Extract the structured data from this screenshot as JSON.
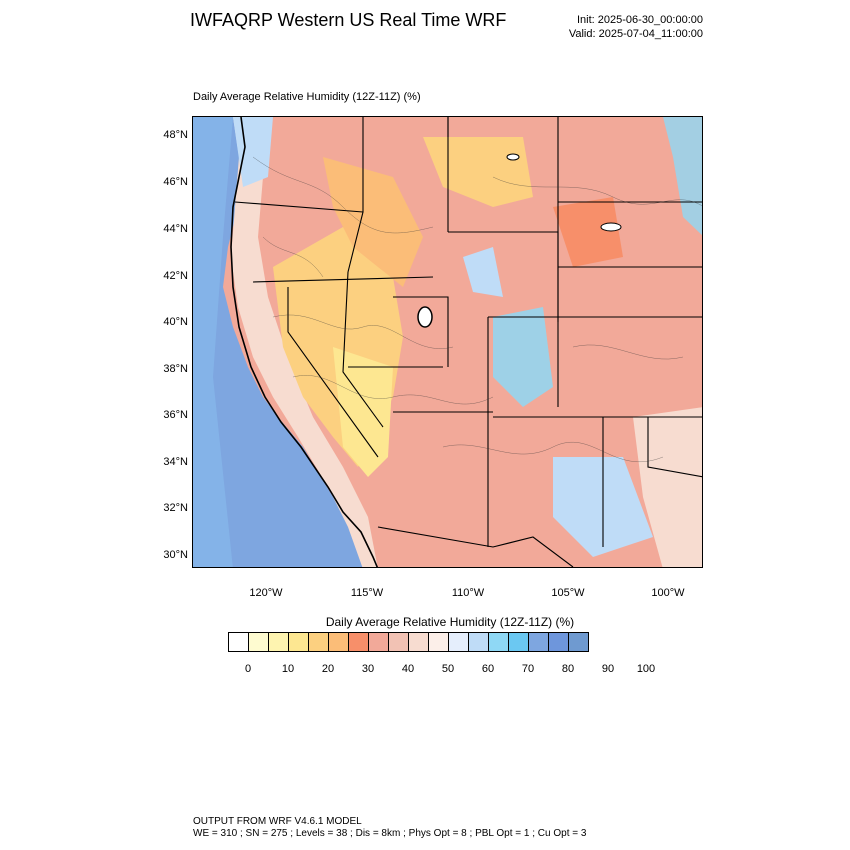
{
  "header": {
    "title": "IWFAQRP Western US Real Time WRF",
    "init": "Init: 2025-06-30_00:00:00",
    "valid": "Valid: 2025-07-04_11:00:00"
  },
  "plot": {
    "title": "Daily Average Relative Humidity (12Z-11Z)   (%)"
  },
  "map": {
    "lat_labels": [
      "48°N",
      "46°N",
      "44°N",
      "42°N",
      "40°N",
      "38°N",
      "36°N",
      "34°N",
      "32°N",
      "30°N"
    ],
    "lon_labels": [
      "120°W",
      "115°W",
      "110°W",
      "105°W",
      "100°W"
    ],
    "ocean_color": "#7ea6e0",
    "land_colors": {
      "dry": "#fcd080",
      "mid": "#f2a080",
      "moist": "#f7d8cc",
      "wet": "#8fd8f5"
    }
  },
  "colorbar": {
    "title": "Daily Average Relative Humidity (12Z-11Z)  (%)",
    "colors": [
      "#ffffff",
      "#fefbd0",
      "#fef4b0",
      "#fde791",
      "#fcd080",
      "#fbbd78",
      "#f78f6a",
      "#f2a999",
      "#f2c2b4",
      "#f7dcd0",
      "#fcefe9",
      "#e5eefc",
      "#bfdcf7",
      "#8fd8f5",
      "#6bc8f2",
      "#7ea6e0",
      "#6e96dc",
      "#6f9ad0"
    ],
    "labels": [
      "0",
      "10",
      "20",
      "30",
      "40",
      "50",
      "60",
      "70",
      "80",
      "90",
      "100"
    ]
  },
  "footer": {
    "line1": "OUTPUT FROM WRF V4.6.1 MODEL",
    "line2": "WE = 310 ; SN = 275 ; Levels = 38 ; Dis = 8km ; Phys Opt = 8 ; PBL Opt = 1 ; Cu Opt = 3"
  }
}
